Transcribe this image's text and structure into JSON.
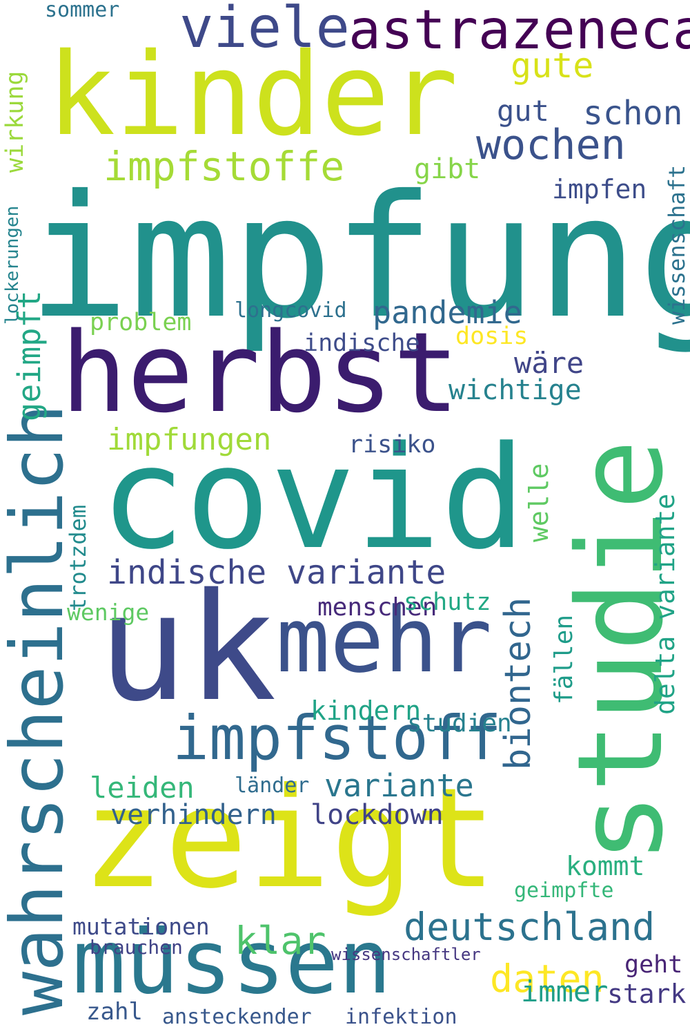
{
  "words": [
    {
      "text": "impfung",
      "color": "#21918c"
    },
    {
      "text": "covid",
      "color": "#1f968b"
    },
    {
      "text": "kinder",
      "color": "#cde11d"
    },
    {
      "text": "herbst",
      "color": "#3b1c6e"
    },
    {
      "text": "studie",
      "color": "#3fbc73"
    },
    {
      "text": "zeigt",
      "color": "#dde318"
    },
    {
      "text": "uk",
      "color": "#3e4a89"
    },
    {
      "text": "mehr",
      "color": "#3b528b"
    },
    {
      "text": "müssen",
      "color": "#2a788e"
    },
    {
      "text": "astrazeneca",
      "color": "#440154"
    },
    {
      "text": "wahrscheinlich",
      "color": "#2d708e"
    },
    {
      "text": "viele",
      "color": "#3e4989"
    },
    {
      "text": "impfstoff",
      "color": "#31688e"
    },
    {
      "text": "indische variante",
      "color": "#3f4788"
    },
    {
      "text": "wochen",
      "color": "#3b528b"
    },
    {
      "text": "impfstoffe",
      "color": "#a5db36"
    },
    {
      "text": "deutschland",
      "color": "#2c728e"
    },
    {
      "text": "variante",
      "color": "#2a768e"
    },
    {
      "text": "daten",
      "color": "#fde725"
    },
    {
      "text": "gute",
      "color": "#d8e219"
    },
    {
      "text": "schon",
      "color": "#3a548c"
    },
    {
      "text": "pandemie",
      "color": "#31688e"
    },
    {
      "text": "impfungen",
      "color": "#a0da39"
    },
    {
      "text": "verhindern",
      "color": "#33628d"
    },
    {
      "text": "lockdown",
      "color": "#404387"
    },
    {
      "text": "leiden",
      "color": "#35b779"
    },
    {
      "text": "wichtige",
      "color": "#26828e"
    },
    {
      "text": "wäre",
      "color": "#404588"
    },
    {
      "text": "biontech",
      "color": "#31668e"
    },
    {
      "text": "immer",
      "color": "#1f9e89"
    },
    {
      "text": "klar",
      "color": "#4ec36b"
    },
    {
      "text": "mutationen",
      "color": "#3e4a89"
    },
    {
      "text": "kommt",
      "color": "#29af7f"
    },
    {
      "text": "wirkung",
      "color": "#9bd93c"
    },
    {
      "text": "geimpft",
      "color": "#22a785"
    },
    {
      "text": "welle",
      "color": "#5ec962"
    },
    {
      "text": "delta variante",
      "color": "#20a386"
    },
    {
      "text": "indische",
      "color": "#3e4c8a"
    },
    {
      "text": "menschen",
      "color": "#472a7a"
    },
    {
      "text": "kindern",
      "color": "#20a386"
    },
    {
      "text": "schutz",
      "color": "#22a884"
    },
    {
      "text": "geimpfte",
      "color": "#35b779"
    },
    {
      "text": "risiko",
      "color": "#3b528b"
    },
    {
      "text": "sommer",
      "color": "#2c728e"
    },
    {
      "text": "gut",
      "color": "#3b518b"
    },
    {
      "text": "impfen",
      "color": "#3d4d8a"
    },
    {
      "text": "gibt",
      "color": "#86d549"
    },
    {
      "text": "problem",
      "color": "#7ad151"
    },
    {
      "text": "dosis",
      "color": "#fde725"
    },
    {
      "text": "longcovid",
      "color": "#2d718e"
    },
    {
      "text": "lockerungen",
      "color": "#25848e"
    },
    {
      "text": "trotzdem",
      "color": "#228b8d"
    },
    {
      "text": "wenige",
      "color": "#5ec962"
    },
    {
      "text": "stark",
      "color": "#443983"
    },
    {
      "text": "geht",
      "color": "#482475"
    },
    {
      "text": "brauchen",
      "color": "#404387"
    },
    {
      "text": "wissenschaftler",
      "color": "#453781"
    },
    {
      "text": "studien",
      "color": "#26818e"
    },
    {
      "text": "länder",
      "color": "#2f6c8e"
    },
    {
      "text": "zahl",
      "color": "#38588c"
    },
    {
      "text": "ansteckender",
      "color": "#38588c"
    },
    {
      "text": "infektion",
      "color": "#3b528b"
    },
    {
      "text": "wissenschaft",
      "color": "#2c728e"
    },
    {
      "text": "fällen",
      "color": "#1e9c89"
    }
  ]
}
